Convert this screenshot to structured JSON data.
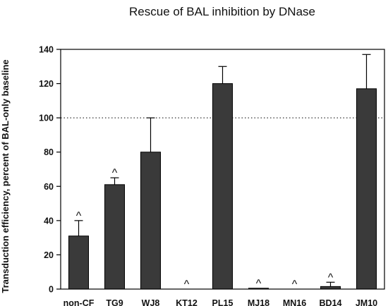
{
  "chart_data": {
    "type": "bar",
    "title": "Rescue of BAL inhibition by DNase",
    "xlabel": "",
    "ylabel": "Transduction efficiency, percent of BAL-only baseline",
    "categories": [
      "non-CF",
      "TG9",
      "WJ8",
      "KT12",
      "PL15",
      "MJ18",
      "MN16",
      "BD14",
      "JM10"
    ],
    "values": [
      31,
      61,
      80,
      0,
      120,
      0.5,
      0,
      1.5,
      117
    ],
    "error_upper": [
      9,
      4,
      20,
      0,
      10,
      0,
      0,
      2.5,
      20
    ],
    "markers": [
      "^",
      "^",
      "",
      "^",
      "",
      "^",
      "^",
      "^",
      ""
    ],
    "ylim": [
      0,
      140
    ],
    "yticks": [
      0,
      20,
      40,
      60,
      80,
      100,
      120,
      140
    ],
    "reference_line": 100,
    "grid": false,
    "colors": {
      "bar": "#3a3a3a",
      "axis": "#000000",
      "reference": "#000000"
    }
  }
}
